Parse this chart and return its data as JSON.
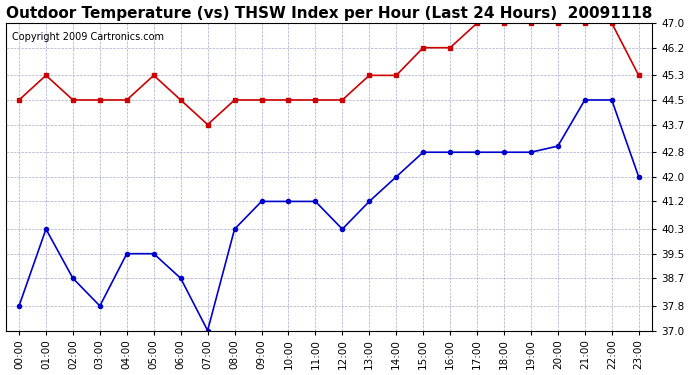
{
  "title": "Outdoor Temperature (vs) THSW Index per Hour (Last 24 Hours)  20091118",
  "copyright": "Copyright 2009 Cartronics.com",
  "hours": [
    "00:00",
    "01:00",
    "02:00",
    "03:00",
    "04:00",
    "05:00",
    "06:00",
    "07:00",
    "08:00",
    "09:00",
    "10:00",
    "11:00",
    "12:00",
    "13:00",
    "14:00",
    "15:00",
    "16:00",
    "17:00",
    "18:00",
    "19:00",
    "20:00",
    "21:00",
    "22:00",
    "23:00"
  ],
  "blue_data": [
    37.8,
    40.3,
    38.7,
    37.8,
    39.5,
    39.5,
    38.7,
    37.0,
    40.3,
    41.2,
    41.2,
    41.2,
    40.3,
    41.2,
    42.0,
    42.8,
    42.8,
    42.8,
    42.8,
    42.8,
    43.0,
    44.5,
    44.5,
    42.0
  ],
  "red_data": [
    44.5,
    45.3,
    44.5,
    44.5,
    44.5,
    45.3,
    44.5,
    43.7,
    44.5,
    44.5,
    44.5,
    44.5,
    44.5,
    45.3,
    45.3,
    46.2,
    46.2,
    47.0,
    47.0,
    47.0,
    47.0,
    47.0,
    47.0,
    45.3
  ],
  "blue_color": "#0000cc",
  "red_color": "#cc0000",
  "bg_color": "#ffffff",
  "grid_color": "#aaaacc",
  "ylim": [
    37.0,
    47.0
  ],
  "yticks": [
    37.0,
    37.8,
    38.7,
    39.5,
    40.3,
    41.2,
    42.0,
    42.8,
    43.7,
    44.5,
    45.3,
    46.2,
    47.0
  ],
  "title_fontsize": 11,
  "copyright_fontsize": 7,
  "tick_fontsize": 7.5
}
